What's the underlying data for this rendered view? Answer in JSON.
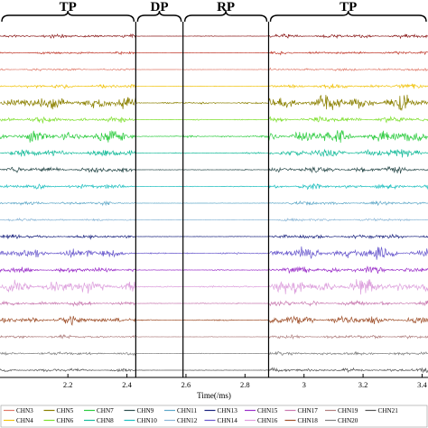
{
  "chart_data": {
    "type": "line",
    "title": "",
    "xlabel": "Time(/ms)",
    "ylabel": "",
    "xlim": [
      1.97,
      3.42
    ],
    "x_ticks": [
      "2.2",
      "2.4",
      "2.6",
      "2.8",
      "3",
      "3.2",
      "3.4"
    ],
    "x_tick_values": [
      2.2,
      2.4,
      2.6,
      2.8,
      3.0,
      3.2,
      3.4
    ],
    "grid": false,
    "legend_position": "bottom",
    "phases": [
      {
        "label": "TP",
        "start": 1.97,
        "end": 2.43
      },
      {
        "label": "DP",
        "start": 2.43,
        "end": 2.59
      },
      {
        "label": "RP",
        "start": 2.59,
        "end": 2.88
      },
      {
        "label": "TP",
        "start": 2.88,
        "end": 3.42
      }
    ],
    "phase_boundaries": [
      2.43,
      2.59,
      2.88
    ],
    "series": [
      {
        "name": "",
        "color": "#8b1a1a",
        "amp": 0.25
      },
      {
        "name": "",
        "color": "#c0392b",
        "amp": 0.2
      },
      {
        "name": "",
        "color": "#e07a6a",
        "amp": 0.2
      },
      {
        "name": "",
        "color": "#f1c40f",
        "amp": 0.3
      },
      {
        "name": "",
        "color": "#8b8000",
        "amp": 1.0
      },
      {
        "name": "",
        "color": "#7ddf2c",
        "amp": 0.4
      },
      {
        "name": "",
        "color": "#2ecc40",
        "amp": 0.85
      },
      {
        "name": "",
        "color": "#1abc9c",
        "amp": 0.6
      },
      {
        "name": "",
        "color": "#2f4f4f",
        "amp": 0.45
      },
      {
        "name": "",
        "color": "#1fbfbf",
        "amp": 0.35
      },
      {
        "name": "",
        "color": "#5fa8c8",
        "amp": 0.25
      },
      {
        "name": "",
        "color": "#8ab6d6",
        "amp": 0.2
      },
      {
        "name": "",
        "color": "#1a237e",
        "amp": 0.3
      },
      {
        "name": "",
        "color": "#6a5acd",
        "amp": 0.75
      },
      {
        "name": "",
        "color": "#9b30c9",
        "amp": 0.45
      },
      {
        "name": "",
        "color": "#dda0dd",
        "amp": 0.95
      },
      {
        "name": "",
        "color": "#c97ab0",
        "amp": 0.35
      },
      {
        "name": "",
        "color": "#a0522d",
        "amp": 0.55
      },
      {
        "name": "",
        "color": "#b08080",
        "amp": 0.25
      },
      {
        "name": "",
        "color": "#808080",
        "amp": 0.25
      },
      {
        "name": "",
        "color": "#555555",
        "amp": 0.25
      }
    ],
    "legend": [
      {
        "label": "CHN3",
        "color": "#e07a6a"
      },
      {
        "label": "CHN4",
        "color": "#f1c40f"
      },
      {
        "label": "CHN5",
        "color": "#8b8000"
      },
      {
        "label": "CHN6",
        "color": "#7ddf2c"
      },
      {
        "label": "CHN7",
        "color": "#2ecc40"
      },
      {
        "label": "CHN8",
        "color": "#1abc9c"
      },
      {
        "label": "CHN9",
        "color": "#2f4f4f"
      },
      {
        "label": "CHN10",
        "color": "#1fbfbf"
      },
      {
        "label": "CHN11",
        "color": "#5fa8c8"
      },
      {
        "label": "CHN12",
        "color": "#8ab6d6"
      },
      {
        "label": "CHN13",
        "color": "#1a237e"
      },
      {
        "label": "CHN14",
        "color": "#6a5acd"
      },
      {
        "label": "CHN15",
        "color": "#9b30c9"
      },
      {
        "label": "CHN16",
        "color": "#dda0dd"
      },
      {
        "label": "CHN17",
        "color": "#c97ab0"
      },
      {
        "label": "CHN18",
        "color": "#a0522d"
      },
      {
        "label": "CHN19",
        "color": "#b08080"
      },
      {
        "label": "CHN20",
        "color": "#808080"
      },
      {
        "label": "CHN21",
        "color": "#555555"
      }
    ]
  }
}
